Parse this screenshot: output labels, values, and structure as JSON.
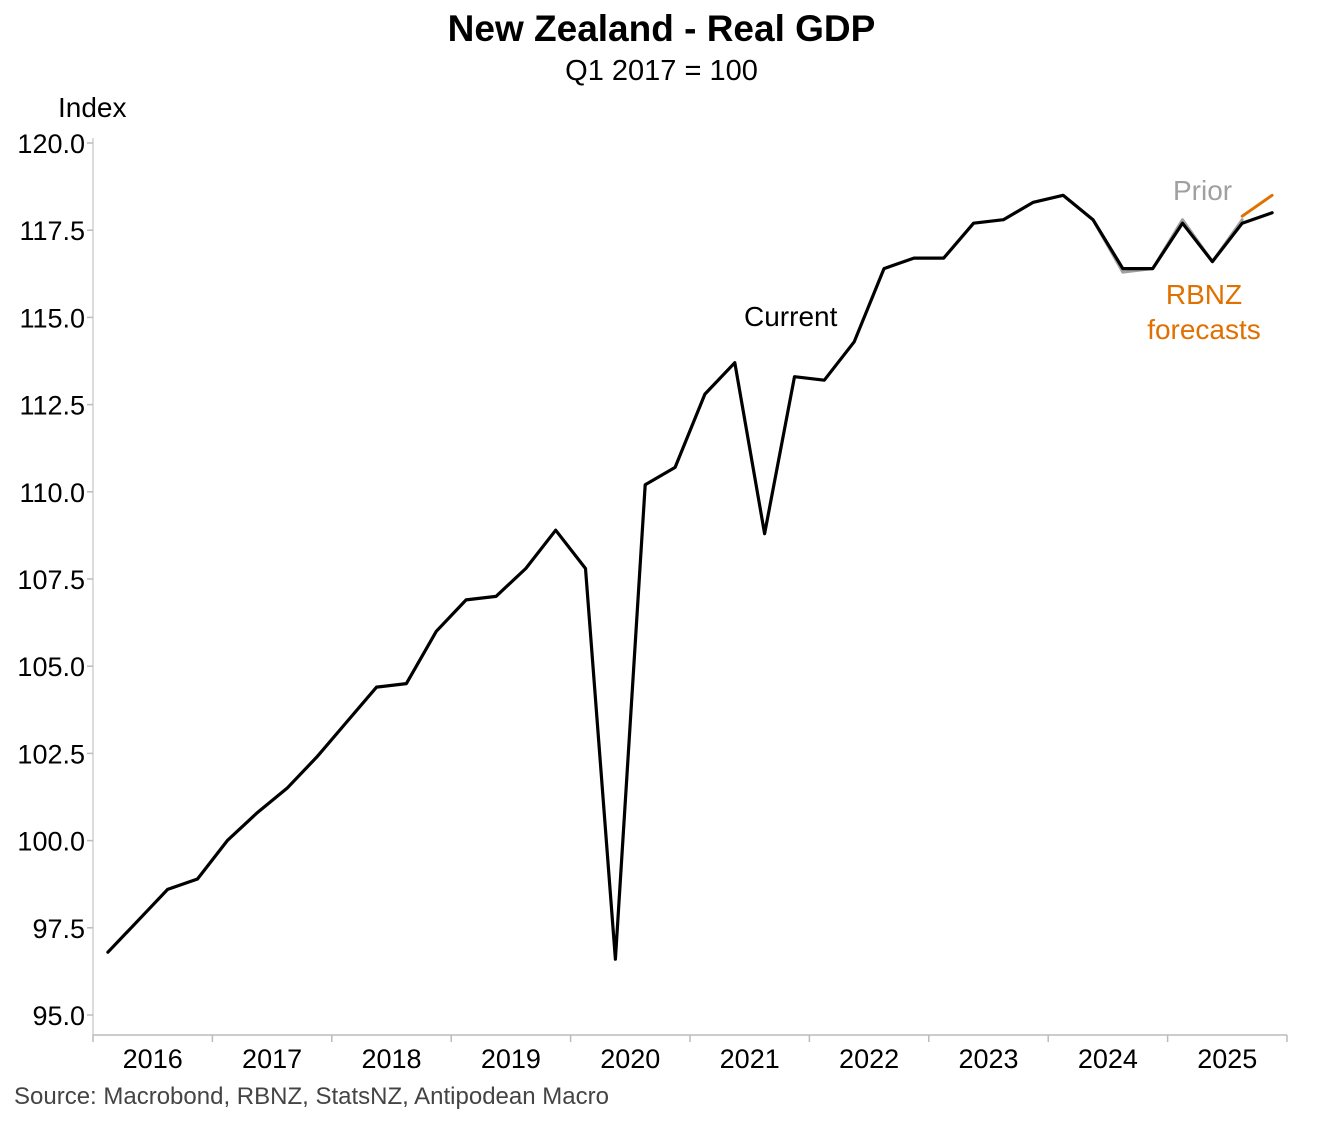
{
  "chart_data": {
    "type": "line",
    "title": "New Zealand - Real GDP",
    "subtitle": "Q1 2017 = 100",
    "ylabel": "Index",
    "source": "Source: Macrobond, RBNZ, StatsNZ, Antipodean Macro",
    "ylim": [
      95.0,
      120.0
    ],
    "yticks": [
      "95.0",
      "97.5",
      "100.0",
      "102.5",
      "105.0",
      "107.5",
      "110.0",
      "112.5",
      "115.0",
      "117.5",
      "120.0"
    ],
    "ytick_values": [
      95.0,
      97.5,
      100.0,
      102.5,
      105.0,
      107.5,
      110.0,
      112.5,
      115.0,
      117.5,
      120.0
    ],
    "xlim": [
      2015.5,
      2025.5
    ],
    "year_labels": [
      "2016",
      "2017",
      "2018",
      "2019",
      "2020",
      "2021",
      "2022",
      "2023",
      "2024",
      "2025"
    ],
    "grid": false,
    "annotations": [
      {
        "text": "Current",
        "color": "#000000"
      },
      {
        "text": "Prior",
        "color": "#a0a0a0"
      },
      {
        "text": "RBNZ",
        "color": "#e07000"
      },
      {
        "text": "forecasts",
        "color": "#e07000"
      }
    ],
    "series": [
      {
        "name": "Current",
        "color": "#000000",
        "x": [
          2015.625,
          2015.875,
          2016.125,
          2016.375,
          2016.625,
          2016.875,
          2017.125,
          2017.375,
          2017.625,
          2017.875,
          2018.125,
          2018.375,
          2018.625,
          2018.875,
          2019.125,
          2019.375,
          2019.625,
          2019.875,
          2020.125,
          2020.375,
          2020.625,
          2020.875,
          2021.125,
          2021.375,
          2021.625,
          2021.875,
          2022.125,
          2022.375,
          2022.625,
          2022.875,
          2023.125,
          2023.375,
          2023.625,
          2023.875,
          2024.125,
          2024.375,
          2024.625,
          2024.875,
          2025.125,
          2025.375
        ],
        "values": [
          96.8,
          97.7,
          98.6,
          98.9,
          100.0,
          100.8,
          101.5,
          102.4,
          103.4,
          104.4,
          104.5,
          106.0,
          106.9,
          107.0,
          107.8,
          108.9,
          107.8,
          96.6,
          110.2,
          110.7,
          112.8,
          113.7,
          108.8,
          113.3,
          113.2,
          114.3,
          116.4,
          116.7,
          116.7,
          117.7,
          117.8,
          118.3,
          118.5,
          117.8,
          116.4,
          116.4,
          117.7,
          116.6,
          117.7,
          118.0
        ]
      },
      {
        "name": "Prior",
        "color": "#a0a0a0",
        "x": [
          2023.875,
          2024.125,
          2024.375,
          2024.625,
          2024.875,
          2025.125
        ],
        "values": [
          117.8,
          116.3,
          116.4,
          117.8,
          116.6,
          117.8
        ]
      },
      {
        "name": "RBNZ forecasts",
        "color": "#e07000",
        "x": [
          2025.125,
          2025.375
        ],
        "values": [
          117.9,
          118.5
        ]
      }
    ]
  }
}
